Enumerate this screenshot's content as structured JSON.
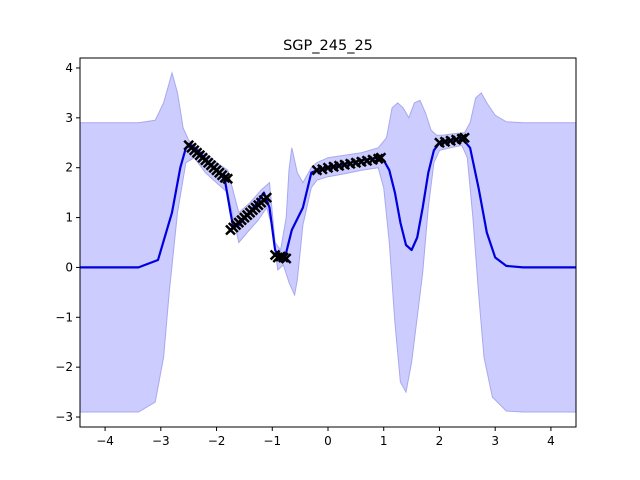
{
  "chart_data": {
    "type": "line",
    "title": "SGP_245_25",
    "xlabel": "",
    "ylabel": "",
    "xlim": [
      -4.45,
      4.45
    ],
    "ylim": [
      -3.2,
      4.2
    ],
    "x_ticks": [
      "−4",
      "−3",
      "−2",
      "−1",
      "0",
      "1",
      "2",
      "3",
      "4"
    ],
    "x_tick_values": [
      -4,
      -3,
      -2,
      -1,
      0,
      1,
      2,
      3,
      4
    ],
    "y_ticks": [
      "−3",
      "−2",
      "−1",
      "0",
      "1",
      "2",
      "3",
      "4"
    ],
    "y_tick_values": [
      -3,
      -2,
      -1,
      0,
      1,
      2,
      3,
      4
    ],
    "grid": false,
    "legend": "none",
    "colors": {
      "mean": "#0000dd",
      "band_fill": "#ccccff",
      "band_edge": "#a8a8ee",
      "data_marker": "#000000"
    },
    "series": [
      {
        "role": "predictive-mean",
        "x": [
          -4.45,
          -3.4,
          -3.05,
          -2.8,
          -2.65,
          -2.55,
          -2.45,
          -2.3,
          -2.1,
          -1.95,
          -1.85,
          -1.75,
          -1.7,
          -1.6,
          -1.45,
          -1.3,
          -1.15,
          -1.05,
          -0.95,
          -0.85,
          -0.75,
          -0.65,
          -0.45,
          -0.3,
          -0.15,
          0.0,
          0.3,
          0.6,
          0.9,
          1.0,
          1.1,
          1.2,
          1.3,
          1.4,
          1.5,
          1.6,
          1.7,
          1.8,
          1.9,
          2.0,
          2.2,
          2.4,
          2.55,
          2.7,
          2.85,
          3.0,
          3.2,
          3.5,
          4.45
        ],
        "y": [
          0.0,
          0.0,
          0.15,
          1.1,
          2.0,
          2.4,
          2.45,
          2.3,
          2.05,
          1.9,
          1.75,
          1.1,
          0.8,
          0.85,
          1.05,
          1.25,
          1.5,
          1.2,
          0.35,
          0.15,
          0.3,
          0.75,
          1.2,
          1.9,
          1.97,
          2.0,
          2.07,
          2.15,
          2.2,
          2.15,
          1.95,
          1.5,
          0.9,
          0.45,
          0.35,
          0.6,
          1.2,
          1.9,
          2.35,
          2.5,
          2.55,
          2.6,
          2.4,
          1.6,
          0.7,
          0.2,
          0.03,
          0.0,
          0.0
        ]
      },
      {
        "role": "confidence-upper",
        "x": [
          -4.45,
          -3.4,
          -3.1,
          -2.95,
          -2.8,
          -2.7,
          -2.6,
          -2.5,
          -2.3,
          -2.0,
          -1.8,
          -1.6,
          -1.4,
          -1.2,
          -1.05,
          -0.95,
          -0.85,
          -0.75,
          -0.7,
          -0.65,
          -0.55,
          -0.45,
          -0.3,
          -0.2,
          0.0,
          0.3,
          0.6,
          0.9,
          1.05,
          1.15,
          1.25,
          1.35,
          1.45,
          1.55,
          1.65,
          1.75,
          1.85,
          1.95,
          2.05,
          2.25,
          2.45,
          2.55,
          2.65,
          2.75,
          2.85,
          3.0,
          3.2,
          3.5,
          4.45
        ],
        "y": [
          2.9,
          2.9,
          2.95,
          3.3,
          3.9,
          3.5,
          2.8,
          2.55,
          2.35,
          2.1,
          1.95,
          1.1,
          1.3,
          1.55,
          1.7,
          0.5,
          0.35,
          1.0,
          1.95,
          2.4,
          1.9,
          1.7,
          2.0,
          2.1,
          2.2,
          2.25,
          2.3,
          2.4,
          2.6,
          3.2,
          3.3,
          3.2,
          3.0,
          3.3,
          3.35,
          3.1,
          2.75,
          2.65,
          2.65,
          2.68,
          2.7,
          2.9,
          3.4,
          3.5,
          3.3,
          3.05,
          2.92,
          2.9,
          2.9
        ]
      },
      {
        "role": "confidence-lower",
        "x": [
          -4.45,
          -3.4,
          -3.1,
          -2.95,
          -2.85,
          -2.7,
          -2.55,
          -2.4,
          -2.2,
          -2.0,
          -1.8,
          -1.6,
          -1.45,
          -1.25,
          -1.1,
          -1.0,
          -0.9,
          -0.8,
          -0.7,
          -0.6,
          -0.55,
          -0.45,
          -0.3,
          -0.2,
          0.0,
          0.3,
          0.6,
          0.9,
          1.0,
          1.1,
          1.2,
          1.3,
          1.4,
          1.5,
          1.6,
          1.7,
          1.8,
          1.9,
          2.0,
          2.2,
          2.4,
          2.5,
          2.6,
          2.7,
          2.8,
          2.95,
          3.2,
          3.5,
          4.45
        ],
        "y": [
          -2.9,
          -2.9,
          -2.7,
          -1.8,
          -0.5,
          1.1,
          2.1,
          2.2,
          1.9,
          1.7,
          1.5,
          0.5,
          0.7,
          0.95,
          1.2,
          0.8,
          -0.05,
          0.05,
          -0.3,
          -0.55,
          -0.25,
          0.85,
          1.6,
          1.75,
          1.82,
          1.88,
          1.95,
          2.0,
          1.6,
          0.5,
          -1.1,
          -2.3,
          -2.5,
          -1.9,
          -1.0,
          -0.1,
          1.2,
          2.1,
          2.35,
          2.4,
          2.45,
          2.2,
          1.0,
          -0.5,
          -1.8,
          -2.6,
          -2.88,
          -2.9,
          -2.9
        ]
      }
    ],
    "data_points": {
      "marker": "x",
      "x": [
        -2.5,
        -2.45,
        -2.4,
        -2.35,
        -2.3,
        -2.25,
        -2.2,
        -2.15,
        -2.1,
        -2.05,
        -2.0,
        -1.95,
        -1.9,
        -1.85,
        -1.8,
        -1.75,
        -1.7,
        -1.65,
        -1.6,
        -1.55,
        -1.5,
        -1.45,
        -1.4,
        -1.35,
        -1.3,
        -1.25,
        -1.2,
        -1.15,
        -1.1,
        -0.95,
        -0.9,
        -0.85,
        -0.8,
        -0.75,
        -0.2,
        -0.1,
        0.0,
        0.1,
        0.2,
        0.3,
        0.4,
        0.5,
        0.6,
        0.7,
        0.8,
        0.9,
        0.95,
        2.0,
        2.1,
        2.2,
        2.3,
        2.4,
        2.45
      ],
      "y": [
        2.45,
        2.4,
        2.35,
        2.3,
        2.25,
        2.2,
        2.15,
        2.1,
        2.05,
        2.0,
        1.95,
        1.9,
        1.85,
        1.8,
        1.78,
        0.75,
        0.8,
        0.85,
        0.9,
        0.95,
        1.0,
        1.05,
        1.1,
        1.15,
        1.2,
        1.25,
        1.3,
        1.35,
        1.4,
        0.25,
        0.2,
        0.22,
        0.2,
        0.18,
        1.95,
        1.97,
        2.0,
        2.02,
        2.04,
        2.06,
        2.08,
        2.1,
        2.12,
        2.14,
        2.16,
        2.18,
        2.2,
        2.5,
        2.52,
        2.54,
        2.56,
        2.58,
        2.6
      ]
    }
  }
}
